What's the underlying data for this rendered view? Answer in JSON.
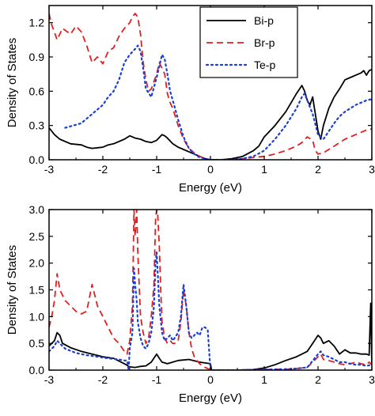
{
  "chart_data": [
    {
      "type": "line",
      "xlabel": "Energy (eV)",
      "ylabel": "Density of States",
      "xlim": [
        -3,
        3
      ],
      "ylim": [
        0,
        1.35
      ],
      "xticks": [
        "-3",
        "-2",
        "-1",
        "0",
        "1",
        "2",
        "3"
      ],
      "yticks": [
        "0.0",
        "0.3",
        "0.6",
        "0.9",
        "1.2"
      ],
      "ytick_values": [
        0,
        0.3,
        0.6,
        0.9,
        1.2
      ],
      "legend_position": "top-right",
      "series": [
        {
          "name": "Bi-p",
          "color": "#000000",
          "style": "solid",
          "x": [
            -3.0,
            -2.9,
            -2.8,
            -2.6,
            -2.4,
            -2.3,
            -2.2,
            -2.0,
            -1.9,
            -1.8,
            -1.6,
            -1.5,
            -1.4,
            -1.3,
            -1.2,
            -1.1,
            -1.0,
            -0.9,
            -0.85,
            -0.8,
            -0.7,
            -0.6,
            -0.5,
            -0.4,
            -0.3,
            -0.2,
            -0.1,
            0.0,
            0.2,
            0.4,
            0.6,
            0.8,
            0.9,
            1.0,
            1.2,
            1.4,
            1.5,
            1.6,
            1.7,
            1.75,
            1.8,
            1.85,
            1.9,
            1.95,
            2.0,
            2.05,
            2.1,
            2.2,
            2.3,
            2.4,
            2.5,
            2.6,
            2.7,
            2.8,
            2.85,
            2.9,
            2.95,
            3.0
          ],
          "y": [
            0.28,
            0.22,
            0.18,
            0.14,
            0.13,
            0.11,
            0.1,
            0.11,
            0.13,
            0.14,
            0.18,
            0.21,
            0.19,
            0.18,
            0.16,
            0.15,
            0.17,
            0.22,
            0.21,
            0.19,
            0.14,
            0.11,
            0.09,
            0.07,
            0.05,
            0.03,
            0.01,
            0.0,
            0.0,
            0.01,
            0.03,
            0.08,
            0.12,
            0.2,
            0.3,
            0.42,
            0.5,
            0.58,
            0.65,
            0.6,
            0.52,
            0.48,
            0.55,
            0.4,
            0.25,
            0.18,
            0.3,
            0.45,
            0.55,
            0.62,
            0.7,
            0.72,
            0.74,
            0.76,
            0.78,
            0.74,
            0.78,
            0.79
          ]
        },
        {
          "name": "Br-p",
          "color": "#e02020",
          "style": "dashed",
          "x": [
            -3.0,
            -2.95,
            -2.85,
            -2.75,
            -2.6,
            -2.5,
            -2.4,
            -2.3,
            -2.2,
            -2.1,
            -2.0,
            -1.9,
            -1.8,
            -1.7,
            -1.6,
            -1.5,
            -1.45,
            -1.4,
            -1.35,
            -1.3,
            -1.25,
            -1.2,
            -1.15,
            -1.1,
            -1.0,
            -0.95,
            -0.9,
            -0.85,
            -0.8,
            -0.75,
            -0.7,
            -0.6,
            -0.5,
            -0.4,
            -0.3,
            -0.2,
            -0.1,
            0.0,
            0.2,
            0.4,
            0.6,
            0.8,
            1.0,
            1.2,
            1.4,
            1.6,
            1.7,
            1.8,
            1.9,
            1.95,
            2.0,
            2.1,
            2.2,
            2.3,
            2.4,
            2.5,
            2.6,
            2.7,
            2.8,
            2.9,
            3.0
          ],
          "y": [
            1.28,
            1.18,
            1.05,
            1.15,
            1.1,
            1.17,
            1.12,
            1.0,
            0.85,
            0.9,
            0.84,
            0.95,
            0.98,
            1.08,
            1.15,
            1.2,
            1.25,
            1.28,
            1.25,
            1.1,
            0.85,
            0.7,
            0.6,
            0.62,
            0.75,
            0.85,
            0.8,
            0.75,
            0.58,
            0.5,
            0.45,
            0.3,
            0.18,
            0.1,
            0.06,
            0.03,
            0.01,
            0.0,
            0.0,
            0.0,
            0.01,
            0.02,
            0.03,
            0.05,
            0.08,
            0.12,
            0.15,
            0.2,
            0.17,
            0.08,
            0.05,
            0.06,
            0.09,
            0.12,
            0.15,
            0.18,
            0.2,
            0.22,
            0.24,
            0.26,
            0.27
          ]
        },
        {
          "name": "Te-p",
          "color": "#1a3fd6",
          "style": "dotted",
          "x": [
            -2.7,
            -2.55,
            -2.4,
            -2.2,
            -2.0,
            -1.9,
            -1.8,
            -1.7,
            -1.6,
            -1.5,
            -1.4,
            -1.35,
            -1.3,
            -1.25,
            -1.2,
            -1.1,
            -1.0,
            -0.9,
            -0.85,
            -0.8,
            -0.75,
            -0.7,
            -0.6,
            -0.5,
            -0.4,
            -0.3,
            -0.2,
            -0.1,
            0.0,
            0.2,
            0.4,
            0.6,
            0.8,
            1.0,
            1.2,
            1.4,
            1.6,
            1.7,
            1.75,
            1.8,
            1.9,
            2.0,
            2.1,
            2.2,
            2.3,
            2.4,
            2.5,
            2.6,
            2.7,
            2.8,
            2.9,
            3.0
          ],
          "y": [
            0.28,
            0.3,
            0.32,
            0.4,
            0.48,
            0.55,
            0.6,
            0.7,
            0.85,
            0.92,
            0.97,
            1.0,
            0.95,
            0.8,
            0.62,
            0.55,
            0.72,
            0.92,
            0.88,
            0.75,
            0.6,
            0.52,
            0.35,
            0.2,
            0.1,
            0.05,
            0.02,
            0.01,
            0.0,
            0.0,
            0.0,
            0.01,
            0.03,
            0.08,
            0.18,
            0.3,
            0.45,
            0.55,
            0.58,
            0.52,
            0.4,
            0.22,
            0.18,
            0.25,
            0.32,
            0.38,
            0.42,
            0.45,
            0.48,
            0.5,
            0.52,
            0.53
          ]
        }
      ]
    },
    {
      "type": "line",
      "xlabel": "Energy (eV)",
      "ylabel": "Density of States",
      "xlim": [
        -3,
        3
      ],
      "ylim": [
        0,
        3.0
      ],
      "xticks": [
        "-3",
        "-2",
        "-1",
        "0",
        "1",
        "2",
        "3"
      ],
      "yticks": [
        "0.0",
        "0.5",
        "1.0",
        "1.5",
        "2.0",
        "2.5",
        "3.0"
      ],
      "ytick_values": [
        0,
        0.5,
        1.0,
        1.5,
        2.0,
        2.5,
        3.0
      ],
      "series": [
        {
          "name": "Bi-p",
          "color": "#000000",
          "style": "solid",
          "x": [
            -3.0,
            -2.9,
            -2.85,
            -2.8,
            -2.75,
            -2.6,
            -2.4,
            -2.2,
            -2.0,
            -1.8,
            -1.6,
            -1.5,
            -1.4,
            -1.3,
            -1.2,
            -1.1,
            -1.0,
            -0.95,
            -0.9,
            -0.8,
            -0.6,
            -0.4,
            -0.2,
            0.0,
            0.02,
            0.2,
            0.5,
            0.8,
            1.0,
            1.2,
            1.4,
            1.6,
            1.8,
            1.9,
            2.0,
            2.05,
            2.1,
            2.2,
            2.3,
            2.4,
            2.5,
            2.6,
            2.7,
            2.8,
            2.9,
            2.95,
            2.98,
            3.0
          ],
          "y": [
            0.45,
            0.55,
            0.7,
            0.65,
            0.5,
            0.42,
            0.35,
            0.3,
            0.25,
            0.22,
            0.12,
            0.06,
            0.05,
            0.07,
            0.08,
            0.15,
            0.3,
            0.22,
            0.15,
            0.12,
            0.18,
            0.2,
            0.15,
            0.12,
            0.0,
            0.0,
            0.0,
            0.01,
            0.04,
            0.1,
            0.18,
            0.25,
            0.35,
            0.5,
            0.65,
            0.6,
            0.5,
            0.55,
            0.45,
            0.3,
            0.38,
            0.32,
            0.32,
            0.3,
            0.3,
            0.28,
            1.25,
            0.1
          ]
        },
        {
          "name": "Br-p",
          "color": "#e02020",
          "style": "dashed",
          "x": [
            -3.0,
            -2.95,
            -2.9,
            -2.85,
            -2.8,
            -2.7,
            -2.6,
            -2.5,
            -2.4,
            -2.3,
            -2.2,
            -2.1,
            -2.0,
            -1.9,
            -1.8,
            -1.7,
            -1.6,
            -1.55,
            -1.5,
            -1.45,
            -1.42,
            -1.4,
            -1.37,
            -1.35,
            -1.3,
            -1.25,
            -1.2,
            -1.15,
            -1.1,
            -1.05,
            -1.02,
            -1.0,
            -0.98,
            -0.95,
            -0.92,
            -0.9,
            -0.85,
            -0.8,
            -0.75,
            -0.7,
            -0.65,
            -0.6,
            -0.55,
            -0.5,
            -0.45,
            -0.4,
            -0.35,
            -0.3,
            -0.25,
            -0.2,
            -0.15,
            -0.1,
            -0.05,
            0.0,
            0.02,
            0.5,
            1.0,
            1.5,
            1.8,
            2.0,
            2.05,
            2.1,
            2.2,
            2.3,
            2.4,
            2.5,
            2.6,
            2.7,
            2.8,
            2.9,
            2.95,
            3.0
          ],
          "y": [
            0.8,
            1.0,
            1.3,
            1.8,
            1.5,
            1.3,
            1.2,
            1.1,
            1.05,
            1.1,
            1.6,
            1.2,
            1.0,
            0.8,
            0.6,
            0.5,
            0.35,
            0.3,
            0.55,
            1.2,
            3.0,
            2.5,
            3.0,
            2.2,
            1.0,
            0.7,
            0.5,
            0.6,
            1.0,
            1.6,
            2.8,
            3.0,
            2.9,
            2.3,
            1.4,
            0.9,
            0.6,
            0.5,
            0.55,
            0.5,
            0.5,
            0.55,
            0.9,
            1.5,
            1.2,
            0.7,
            0.4,
            0.25,
            0.18,
            0.12,
            0.08,
            0.05,
            0.03,
            0.0,
            0.0,
            0.0,
            0.01,
            0.02,
            0.05,
            0.25,
            0.3,
            0.2,
            0.18,
            0.15,
            0.12,
            0.1,
            0.12,
            0.15,
            0.12,
            0.1,
            0.15,
            0.1
          ]
        },
        {
          "name": "Te-p",
          "color": "#1a3fd6",
          "style": "dotted",
          "x": [
            -3.0,
            -2.9,
            -2.85,
            -2.8,
            -2.7,
            -2.5,
            -2.3,
            -2.1,
            -1.9,
            -1.7,
            -1.6,
            -1.55,
            -1.52,
            -1.5,
            -1.45,
            -1.42,
            -1.4,
            -1.37,
            -1.35,
            -1.3,
            -1.25,
            -1.2,
            -1.15,
            -1.1,
            -1.05,
            -1.02,
            -1.0,
            -0.98,
            -0.95,
            -0.9,
            -0.85,
            -0.8,
            -0.75,
            -0.7,
            -0.6,
            -0.55,
            -0.5,
            -0.45,
            -0.4,
            -0.35,
            -0.3,
            -0.25,
            -0.2,
            -0.15,
            -0.1,
            -0.05,
            0.0,
            0.02,
            0.5,
            1.0,
            1.5,
            1.8,
            2.0,
            2.05,
            2.1,
            2.2,
            2.3,
            2.4,
            2.5,
            2.6,
            2.7,
            2.8,
            2.9,
            3.0
          ],
          "y": [
            0.35,
            0.45,
            0.55,
            0.5,
            0.4,
            0.32,
            0.28,
            0.25,
            0.22,
            0.2,
            0.18,
            0.18,
            0.0,
            0.4,
            0.7,
            1.9,
            1.6,
            1.3,
            0.9,
            0.6,
            0.45,
            0.4,
            0.5,
            0.7,
            1.2,
            2.0,
            2.2,
            1.8,
            1.2,
            0.7,
            0.55,
            0.6,
            0.65,
            0.55,
            0.7,
            1.0,
            1.6,
            1.2,
            0.7,
            0.6,
            0.65,
            0.7,
            0.65,
            0.8,
            0.8,
            0.75,
            0.0,
            0.0,
            0.0,
            0.01,
            0.02,
            0.05,
            0.3,
            0.35,
            0.28,
            0.25,
            0.2,
            0.15,
            0.15,
            0.12,
            0.1,
            0.1,
            0.08,
            0.1
          ]
        }
      ]
    }
  ]
}
